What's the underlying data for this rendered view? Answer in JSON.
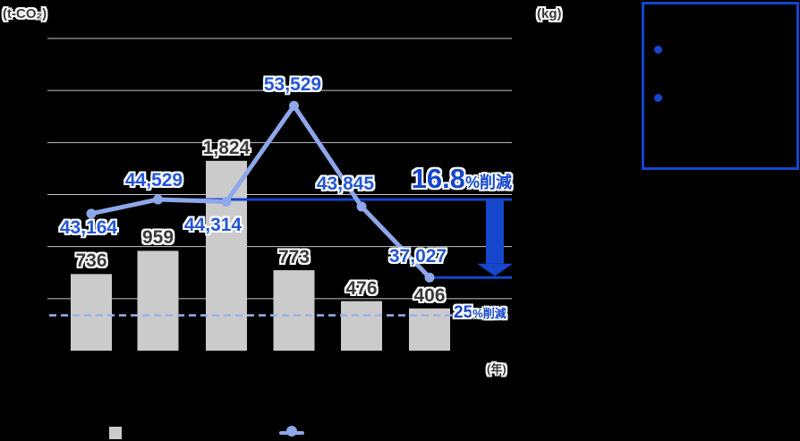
{
  "labels": {
    "unit_left": "(t-CO₂)",
    "unit_right": "(kg)",
    "year": "(年)",
    "reduction_value": "16.8",
    "reduction_suffix": "%削減",
    "target_value": "25",
    "target_suffix": "%削減"
  },
  "colors": {
    "accent-blue": "#1546cc",
    "label-blue": "#2457d6",
    "light-blue": "#8ea7ea",
    "dashed-blue": "#9db1ee",
    "bar-gray": "#cbcbcb",
    "grid-gray": "#c6c6cc",
    "text-dark": "#3a3a3a",
    "background": "#000000"
  },
  "chart_data": {
    "type": "combo",
    "bar_series": {
      "axis": "left",
      "unit": "t-CO₂",
      "values": [
        736,
        959,
        1824,
        773,
        476,
        406
      ],
      "labels": [
        "736",
        "959",
        "1,824",
        "773",
        "476",
        "406"
      ]
    },
    "line_series": {
      "axis": "right",
      "unit": "kg",
      "values": [
        43164,
        44529,
        44314,
        53529,
        43845,
        37027
      ],
      "labels": [
        "43,164",
        "44,529",
        "44,314",
        "53,529",
        "43,845",
        "37,027"
      ]
    },
    "left_axis": {
      "min": 0,
      "max": 3000,
      "step": 500
    },
    "right_axis": {
      "min": 30000,
      "max": 60000,
      "step": 5000
    },
    "annotations": {
      "baseline_value": 44529,
      "result_value": 37027,
      "reduction_text": "16.8%削減",
      "target_text": "25%削減",
      "target_line_value": 33400
    },
    "gridlines": true,
    "legend_position": "bottom"
  }
}
